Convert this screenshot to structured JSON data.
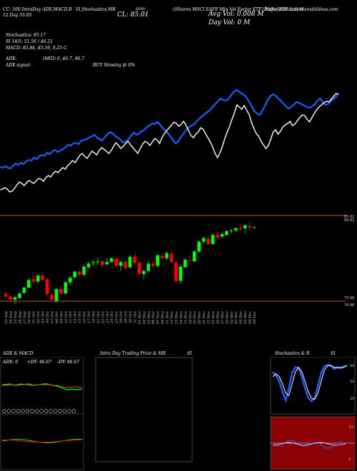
{
  "header": {
    "line1": [
      {
        "text": "CC: 100 IntraDay ADX,MACD,B"
      },
      {
        "text": "SI,Stochastics,MR"
      },
      {
        "text": "(iShares MSCI EAFE Min Vol Factor ETF) ManafaIdeas.com"
      }
    ],
    "line2": "12 Day 55.05",
    "ticker": "EFAV",
    "close_label": "CL: 85.01",
    "avg_vol": "Avg Vol: 0.008  M",
    "day_vol": "Day Vol: 0  M",
    "source": "Buffer ETF Ltd) ManafaIdeas.com"
  },
  "indicators": {
    "stochastics": "Stochastics: 95.17",
    "si_line": "SI 14/5: 51.56 / 46.21",
    "macd": "MACD: 85.84, 85.59, 0.25 C",
    "adx": "ADX:",
    "adx_values": "(MGI) 0, 46.7, 46.7",
    "adx_signal": "ADX  signal:",
    "buy_signal": "BUY Slowing @ 0%"
  },
  "colors": {
    "up": "#00ff00",
    "down": "#ff0000",
    "ma": "#1e5cff",
    "price": "#ffffff",
    "orange": "#c0562a",
    "stoch_bg": "#8b0000"
  },
  "chart_data": [
    {
      "type": "line",
      "series": [
        {
          "values": [
            61,
            60,
            62,
            60,
            59,
            63,
            66,
            64,
            67,
            65,
            69,
            71,
            70,
            74,
            72,
            76,
            78,
            77,
            81,
            79,
            83,
            85,
            82,
            84,
            86,
            89,
            92,
            91,
            94,
            95,
            93,
            98,
            99,
            100,
            102,
            104,
            106,
            102,
            100,
            98,
            103,
            107,
            110,
            108,
            104,
            102,
            99,
            95,
            97,
            100,
            105,
            109,
            106,
            108,
            111,
            113,
            117,
            119,
            122,
            121,
            124,
            120,
            116,
            112,
            108,
            104,
            98,
            94,
            97,
            103,
            108,
            113,
            117,
            119,
            121,
            125,
            129,
            132,
            135,
            138,
            141,
            145,
            149,
            153,
            157,
            155,
            154,
            156,
            161,
            166,
            169,
            167,
            164,
            162,
            158,
            152,
            146,
            139,
            136,
            134,
            140,
            147,
            155,
            160,
            163,
            161,
            157,
            154,
            150,
            146,
            143,
            145,
            148,
            152,
            151,
            149,
            147,
            145,
            144,
            146,
            149,
            154,
            157,
            152,
            148,
            149,
            153,
            156,
            159,
            164
          ]
        },
        {
          "values": [
            29,
            30,
            32,
            30,
            26,
            27,
            31,
            36,
            40,
            38,
            35,
            39,
            42,
            40,
            38,
            42,
            45,
            44,
            41,
            46,
            49,
            47,
            52,
            55,
            53,
            57,
            60,
            58,
            63,
            66,
            70,
            67,
            72,
            77,
            80,
            76,
            73,
            78,
            83,
            81,
            78,
            84,
            88,
            86,
            83,
            80,
            84,
            90,
            95,
            91,
            87,
            90,
            94,
            97,
            92,
            88,
            84,
            80,
            87,
            93,
            97,
            95,
            91,
            96,
            101,
            99,
            94,
            102,
            108,
            112,
            116,
            120,
            124,
            122,
            118,
            121,
            125,
            119,
            112,
            105,
            102,
            107,
            110,
            116,
            114,
            108,
            102,
            96,
            89,
            80,
            74,
            81,
            90,
            101,
            110,
            118,
            128,
            137,
            148,
            145,
            142,
            147,
            141,
            135,
            124,
            115,
            108,
            104,
            97,
            92,
            87,
            91,
            100,
            110,
            113,
            107,
            111,
            117,
            120,
            122,
            125,
            119,
            121,
            126,
            130,
            134,
            133,
            128,
            124,
            130,
            136,
            141,
            145,
            148,
            151,
            153,
            152,
            156,
            160,
            164,
            163
          ]
        }
      ]
    },
    {
      "type": "bar",
      "categories": [
        "23 Sep",
        "24 Sep",
        "25 Sep",
        "26 Sep",
        "27 Sep",
        "30 Sep",
        "01 Oct",
        "02 Oct",
        "03 Oct",
        "04 Oct",
        "07 Oct",
        "08 Oct",
        "09 Oct",
        "10 Oct",
        "11 Oct",
        "14 Oct",
        "15 Oct",
        "16 Oct",
        "17 Oct",
        "18 Oct",
        "21 Oct",
        "22 Oct",
        "23 Oct",
        "24 Oct",
        "25 Oct",
        "28 Oct",
        "29 Oct",
        "30 Oct",
        "31 Oct",
        "01 Nov",
        "04 Nov",
        "05 Nov",
        "06 Nov",
        "07 Nov",
        "08 Nov",
        "11 Nov",
        "12 Nov",
        "13 Nov",
        "14 Nov",
        "15 Nov",
        "18 Nov",
        "19 Nov",
        "20 Nov",
        "21 Nov",
        "22 Nov",
        "25 Nov",
        "26 Nov",
        "27 Nov",
        "29 Nov",
        "02 Dec",
        "03 Dec",
        "04 Dec",
        "05 Dec",
        "06 Dec",
        "09 Dec"
      ],
      "ohlc": [
        [
          76.2,
          76.4,
          75.6,
          75.8
        ],
        [
          75.8,
          76.0,
          75.2,
          75.4
        ],
        [
          75.4,
          75.9,
          74.8,
          75.7
        ],
        [
          75.6,
          76.4,
          75.5,
          76.2
        ],
        [
          76.3,
          77.1,
          76.1,
          77.0
        ],
        [
          77.0,
          78.2,
          76.9,
          78.0
        ],
        [
          78.1,
          78.6,
          77.6,
          77.8
        ],
        [
          77.8,
          78.9,
          77.5,
          78.6
        ],
        [
          78.6,
          79.0,
          77.9,
          78.0
        ],
        [
          78.1,
          78.3,
          75.8,
          76.1
        ],
        [
          76.0,
          76.3,
          75.1,
          75.4
        ],
        [
          75.2,
          77.0,
          75.0,
          76.8
        ],
        [
          76.8,
          77.3,
          76.0,
          76.2
        ],
        [
          76.2,
          77.9,
          76.1,
          77.7
        ],
        [
          77.7,
          78.5,
          77.3,
          78.3
        ],
        [
          78.4,
          79.3,
          78.2,
          79.1
        ],
        [
          79.1,
          79.5,
          78.5,
          78.7
        ],
        [
          78.7,
          80.0,
          78.5,
          79.8
        ],
        [
          79.7,
          80.5,
          79.4,
          80.2
        ],
        [
          80.3,
          80.6,
          79.9,
          80.4
        ],
        [
          80.4,
          81.0,
          80.1,
          80.5
        ],
        [
          80.5,
          80.7,
          79.6,
          80.0
        ],
        [
          80.1,
          80.9,
          79.9,
          80.4
        ],
        [
          80.4,
          81.0,
          80.3,
          80.9
        ],
        [
          80.8,
          81.2,
          79.8,
          79.9
        ],
        [
          79.9,
          80.6,
          79.2,
          80.4
        ],
        [
          80.4,
          80.7,
          79.4,
          79.6
        ],
        [
          79.7,
          81.3,
          79.5,
          81.1
        ],
        [
          81.1,
          81.4,
          80.1,
          80.3
        ],
        [
          80.3,
          80.5,
          78.6,
          78.8
        ],
        [
          78.8,
          79.4,
          78.1,
          79.2
        ],
        [
          79.2,
          80.4,
          79.0,
          80.2
        ],
        [
          80.2,
          80.5,
          79.6,
          79.9
        ],
        [
          79.9,
          81.5,
          79.7,
          81.3
        ],
        [
          81.2,
          81.6,
          80.8,
          80.9
        ],
        [
          80.9,
          81.8,
          80.6,
          81.6
        ],
        [
          81.5,
          81.7,
          80.2,
          80.4
        ],
        [
          80.3,
          80.5,
          77.7,
          77.9
        ],
        [
          77.9,
          80.1,
          77.5,
          79.8
        ],
        [
          79.7,
          80.9,
          79.6,
          80.7
        ],
        [
          80.6,
          81.4,
          80.4,
          80.5
        ],
        [
          80.5,
          82.0,
          80.4,
          81.8
        ],
        [
          81.8,
          83.3,
          81.6,
          83.1
        ],
        [
          83.1,
          83.8,
          82.9,
          83.6
        ],
        [
          83.5,
          83.9,
          82.6,
          82.8
        ],
        [
          82.8,
          84.2,
          82.7,
          84.0
        ],
        [
          84.0,
          84.4,
          83.4,
          83.7
        ],
        [
          83.8,
          84.3,
          83.6,
          84.1
        ],
        [
          84.0,
          84.7,
          83.9,
          84.5
        ],
        [
          84.5,
          84.9,
          84.2,
          84.6
        ],
        [
          84.6,
          85.0,
          84.4,
          84.9
        ],
        [
          84.9,
          85.4,
          84.6,
          84.8
        ],
        [
          84.9,
          85.4,
          84.2,
          85.3
        ],
        [
          85.2,
          85.7,
          84.6,
          85.0
        ],
        [
          85.0,
          85.2,
          84.9,
          85.01
        ]
      ],
      "ylim": [
        75.0,
        86.4
      ],
      "ytick_labels": [
        "85.01",
        "84.81"
      ],
      "ytick_labels_low": [
        "74.96",
        "74.96"
      ]
    },
    {
      "type": "line",
      "title": "ADX  & MACD",
      "annotations": [
        "ADX: 0",
        "+DY: 46.67",
        "-DY: 46.67"
      ],
      "series": [
        {
          "values": [
            47,
            47,
            48,
            47,
            46,
            47,
            48,
            47,
            48,
            47,
            46,
            47,
            47,
            48,
            48,
            47,
            46,
            45,
            44,
            42,
            40,
            40,
            41,
            40,
            40,
            41
          ]
        },
        {
          "values": [
            46,
            46,
            46,
            47,
            46,
            46,
            47,
            47,
            47,
            46,
            46,
            47,
            47,
            47,
            47,
            47,
            46,
            46,
            45,
            44,
            43,
            43,
            44,
            44,
            43,
            44
          ]
        }
      ]
    },
    {
      "type": "line",
      "title": "Intra  Day Trading Price  & MR",
      "label_right": "SI"
    },
    {
      "type": "line",
      "title": "Stochastics & R",
      "label_right": "SI",
      "yticks": [
        "80",
        "50",
        "20"
      ],
      "yticks_lower": [
        "50",
        "0"
      ],
      "series": [
        {
          "values": [
            80,
            72,
            60,
            38,
            20,
            45,
            78,
            90,
            88,
            70,
            45,
            25,
            18,
            25,
            50,
            78,
            92,
            95,
            93,
            86,
            90,
            88,
            92,
            94
          ]
        },
        {
          "values": [
            70,
            76,
            70,
            55,
            35,
            30,
            55,
            80,
            90,
            80,
            60,
            38,
            24,
            22,
            35,
            60,
            84,
            93,
            94,
            90,
            89,
            89,
            90,
            93
          ]
        }
      ]
    }
  ]
}
